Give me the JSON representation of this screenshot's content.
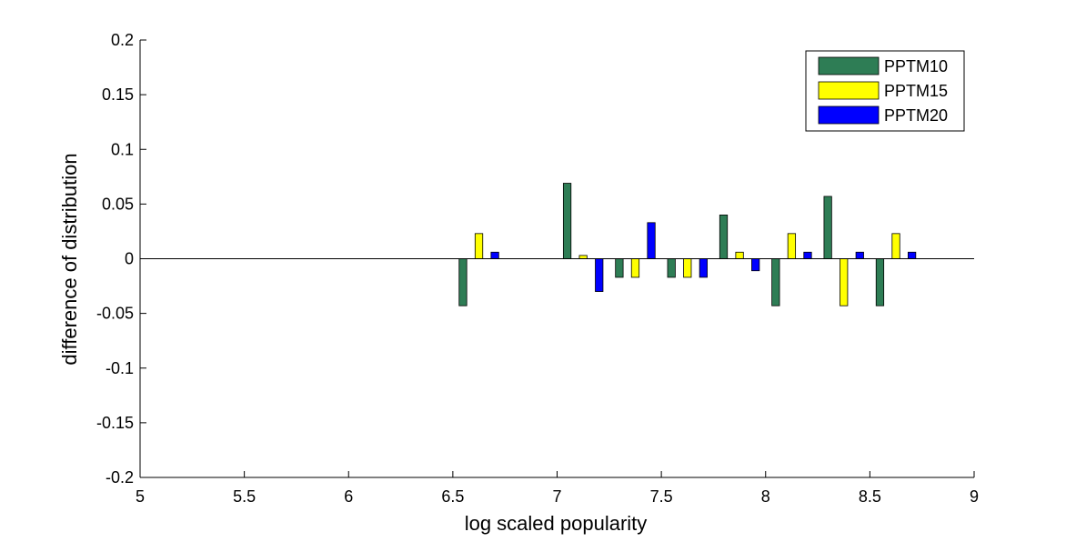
{
  "chart_data": {
    "type": "bar",
    "xlabel": "log scaled popularity",
    "ylabel": "difference of distribution",
    "xlim": [
      5,
      9
    ],
    "ylim": [
      -0.2,
      0.2
    ],
    "x_ticks": [
      "5",
      "5.5",
      "6",
      "6.5",
      "7",
      "7.5",
      "8",
      "8.5",
      "9"
    ],
    "y_ticks": [
      "-0.2",
      "-0.15",
      "-0.1",
      "-0.05",
      "0",
      "0.05",
      "0.1",
      "0.15",
      "0.2"
    ],
    "x": [
      6.625,
      7.125,
      7.375,
      7.625,
      7.875,
      8.125,
      8.375,
      8.625
    ],
    "series": [
      {
        "name": "PPTM10",
        "color": "#2e7d55",
        "values": [
          -0.043,
          0.069,
          -0.017,
          -0.017,
          0.04,
          -0.043,
          0.057,
          -0.043
        ]
      },
      {
        "name": "PPTM15",
        "color": "#ffff00",
        "values": [
          0.023,
          0.003,
          -0.017,
          -0.017,
          0.006,
          0.023,
          -0.043,
          0.023
        ]
      },
      {
        "name": "PPTM20",
        "color": "#0000ff",
        "values": [
          0.006,
          -0.03,
          0.033,
          -0.017,
          -0.011,
          0.006,
          0.006,
          0.006
        ]
      }
    ],
    "legend_position": "top-right",
    "grid": false
  }
}
